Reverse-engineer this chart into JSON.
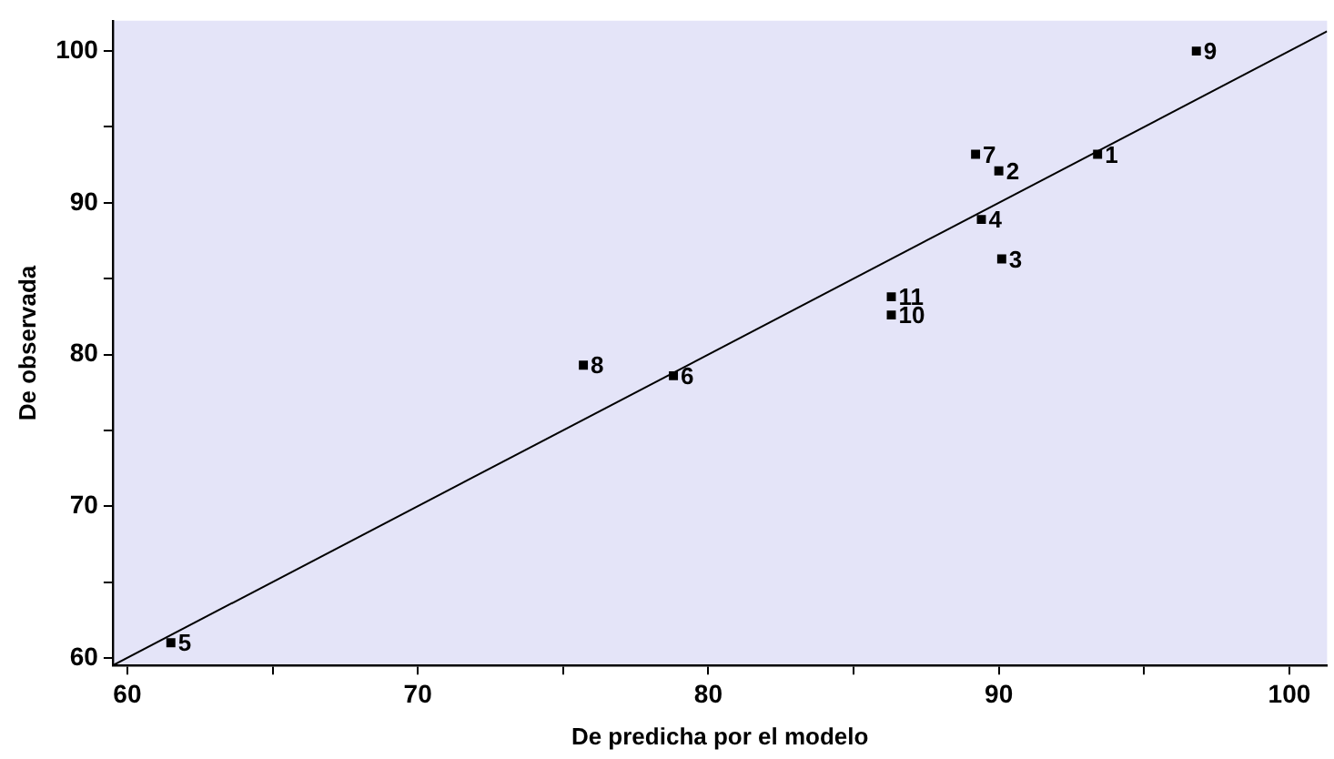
{
  "chart_data": {
    "type": "scatter",
    "xlabel": "De predicha por el modelo",
    "ylabel": "De observada",
    "xlim": [
      59.5,
      101.3
    ],
    "ylim": [
      59.5,
      102
    ],
    "xticks": [
      60,
      {
        "value": 65,
        "label": null
      },
      70,
      {
        "value": 75,
        "label": null
      },
      80,
      {
        "value": 85,
        "label": null
      },
      90,
      {
        "value": 95,
        "label": null
      },
      100
    ],
    "yticks": [
      60,
      {
        "value": 65,
        "label": null
      },
      70,
      {
        "value": 75,
        "label": null
      },
      80,
      {
        "value": 85,
        "label": null
      },
      90,
      {
        "value": 95,
        "label": null
      },
      100
    ],
    "grid": false,
    "legend": false,
    "marker": "square",
    "series": [
      {
        "type": "scatter",
        "color": "#000000",
        "x": [
          93.4,
          90.0,
          90.1,
          89.4,
          61.5,
          78.8,
          89.2,
          75.7,
          96.8,
          86.3,
          86.3
        ],
        "values": [
          93.2,
          92.1,
          86.3,
          88.9,
          61.0,
          78.6,
          93.2,
          79.3,
          100,
          82.6,
          83.8
        ]
      },
      {
        "type": "line",
        "color": "#000000",
        "marker": "none",
        "x": [
          59.5,
          101.3
        ],
        "values": [
          59.5,
          101.3
        ]
      }
    ],
    "annotations": [
      {
        "text": "1",
        "x": 93.4,
        "y": 93.2
      },
      {
        "text": "2",
        "x": 90.0,
        "y": 92.1
      },
      {
        "text": "3",
        "x": 90.1,
        "y": 86.3
      },
      {
        "text": "4",
        "x": 89.4,
        "y": 88.9
      },
      {
        "text": "5",
        "x": 61.5,
        "y": 61.0
      },
      {
        "text": "6",
        "x": 78.8,
        "y": 78.6
      },
      {
        "text": "7",
        "x": 89.2,
        "y": 93.2
      },
      {
        "text": "8",
        "x": 75.7,
        "y": 79.3
      },
      {
        "text": "9",
        "x": 96.8,
        "y": 100
      },
      {
        "text": "10",
        "x": 86.3,
        "y": 82.6
      },
      {
        "text": "11",
        "x": 86.3,
        "y": 83.8
      }
    ]
  }
}
